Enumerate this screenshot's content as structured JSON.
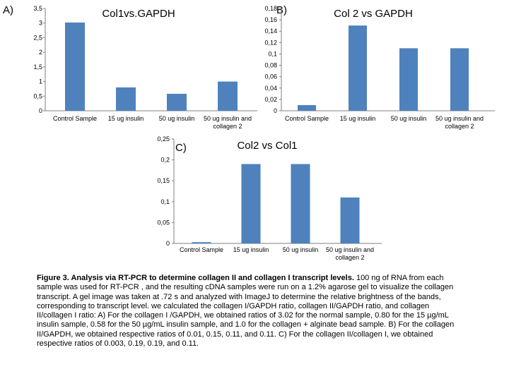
{
  "chart_data": [
    {
      "id": "A",
      "panel_label": "A)",
      "type": "bar",
      "title": "Col1vs.GAPDH",
      "categories": [
        "Control Sample",
        "15 ug insulin",
        "50 ug insulin",
        "50 ug insulin and collagen 2"
      ],
      "values": [
        3.02,
        0.8,
        0.58,
        1.0
      ],
      "ylim": [
        0,
        3.5
      ],
      "yticks": [
        "0",
        "0,5",
        "1",
        "1,5",
        "2",
        "2,5",
        "3",
        "3,5"
      ],
      "bar_color": "#4f81bd"
    },
    {
      "id": "B",
      "panel_label": "B)",
      "type": "bar",
      "title": "Col 2 vs GAPDH",
      "categories": [
        "Control Sample",
        "15 ug insulin",
        "50 ug insulin",
        "50 ug insulin and collagen 2"
      ],
      "values": [
        0.01,
        0.15,
        0.11,
        0.11
      ],
      "ylim": [
        0,
        0.18
      ],
      "yticks": [
        "0",
        "0,02",
        "0,04",
        "0,06",
        "0,08",
        "0,1",
        "0,12",
        "0,14",
        "0,16",
        "0,18"
      ],
      "bar_color": "#4f81bd"
    },
    {
      "id": "C",
      "panel_label": "C)",
      "type": "bar",
      "title": "Col2 vs Col1",
      "categories": [
        "Control Sample",
        "15 ug insulin",
        "50 ug insulin",
        "50 ug insulin and collagen 2"
      ],
      "values": [
        0.003,
        0.19,
        0.19,
        0.11
      ],
      "ylim": [
        0,
        0.25
      ],
      "yticks": [
        "0",
        "0,05",
        "0,1",
        "0,15",
        "0,2",
        "0,25"
      ],
      "bar_color": "#4f81bd"
    }
  ],
  "caption": {
    "bold": "Figure 3. Analysis via RT-PCR to determine collagen II and collagen I transcript levels.",
    "text": " 100 ng of RNA from each sample was used for RT-PCR , and the resulting cDNA samples were run on a 1.2% agarose gel to visualize the collagen transcript. A gel image was taken at .72 s and analyzed with ImageJ to determine the relative brightness of the bands, corresponding to transcript level. we calculated the collagen I/GAPDH ratio, collagen II/GAPDH ratio, and collagen II/collagen I ratio: A) For the collagen I /GAPDH, we obtained ratios of 3.02 for the normal sample, 0.80 for the 15 µg/mL insulin sample, 0.58 for the 50 µg/mL insulin sample, and 1.0 for the collagen + alginate bead sample. B) For the collagen II/GAPDH, we obtained respective ratios of 0.01, 0.15, 0.11, and 0.11. C) For the collagen II/collagen I, we obtained respective ratios of 0.003, 0.19, 0.19, and 0.11."
  }
}
